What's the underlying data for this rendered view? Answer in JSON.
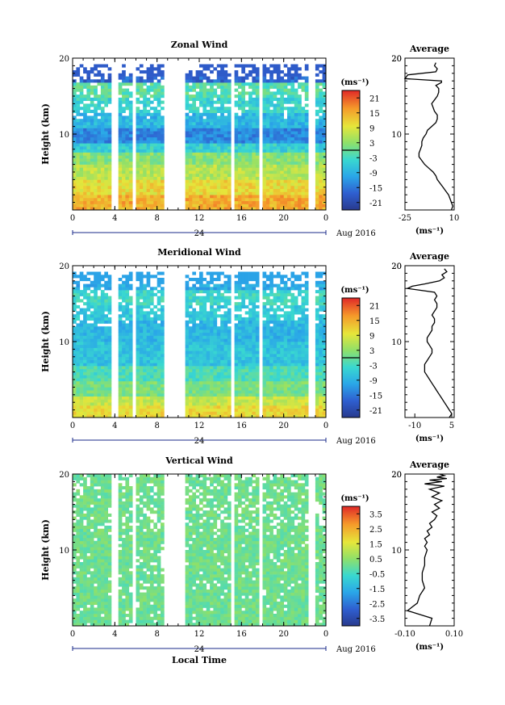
{
  "chart_data": [
    {
      "type": "heatmap",
      "title": "Zonal Wind",
      "ylabel": "Height (km)",
      "yticks": [
        "10",
        "20"
      ],
      "ylim": [
        0,
        20
      ],
      "xticks": [
        "0",
        "4",
        "8",
        "12",
        "16",
        "20",
        "0"
      ],
      "xlim": [
        0,
        24
      ],
      "date_center": "24",
      "date_label": "Aug 2016",
      "colorbar": {
        "unit": "(ms⁻¹)",
        "ticks": [
          "21",
          "15",
          "9",
          "3",
          "-3",
          "-9",
          "-15",
          "-21"
        ],
        "range": [
          -24,
          24
        ]
      },
      "profile": {
        "title": "Average",
        "xticks": [
          "-25",
          "10"
        ],
        "xlim": [
          -25,
          10
        ],
        "yticks": [
          "10",
          "20"
        ],
        "xlabel": "(ms⁻¹)",
        "x": [
          8,
          9,
          8,
          7,
          6,
          4,
          2,
          0,
          -2,
          -3,
          -5,
          -8,
          -11,
          -13,
          -15,
          -15,
          -14,
          -13,
          -13,
          -12,
          -10,
          -9,
          -6,
          -3,
          -2,
          -2,
          -4,
          -5,
          -6,
          -4,
          -2,
          -1,
          -1,
          -2,
          -3,
          1,
          1,
          -25,
          -23,
          -3,
          -2,
          -4,
          -3
        ],
        "y": [
          0,
          0.5,
          1,
          1.5,
          2,
          2.5,
          3,
          3.5,
          4,
          4.5,
          5,
          5.5,
          6,
          6.5,
          7,
          7.5,
          8,
          8.5,
          9,
          9.5,
          10,
          10.5,
          11,
          11.5,
          12,
          12.5,
          13,
          13.5,
          14,
          14.5,
          15,
          15.5,
          16,
          16.2,
          16.4,
          16.8,
          17.0,
          17.3,
          17.8,
          18.2,
          18.6,
          19.0,
          19.4
        ]
      }
    },
    {
      "type": "heatmap",
      "title": "Meridional Wind",
      "ylabel": "Height (km)",
      "yticks": [
        "10",
        "20"
      ],
      "ylim": [
        0,
        20
      ],
      "xticks": [
        "0",
        "4",
        "8",
        "12",
        "16",
        "20",
        "0"
      ],
      "xlim": [
        0,
        24
      ],
      "date_center": "24",
      "date_label": "Aug 2016",
      "colorbar": {
        "unit": "(ms⁻¹)",
        "ticks": [
          "21",
          "15",
          "9",
          "3",
          "-3",
          "-9",
          "-15",
          "-21"
        ],
        "range": [
          -24,
          24
        ]
      },
      "profile": {
        "title": "Average",
        "xticks": [
          "-10",
          "5"
        ],
        "xlim": [
          -14,
          6
        ],
        "yticks": [
          "10",
          "20"
        ],
        "xlabel": "(ms⁻¹)",
        "x": [
          4,
          5,
          4,
          3,
          2,
          1,
          0,
          -1,
          -2,
          -3,
          -4,
          -5,
          -6,
          -6,
          -6,
          -5,
          -4,
          -3,
          -3,
          -4,
          -5,
          -5,
          -4,
          -3,
          -3,
          -2,
          -2,
          -3,
          -2,
          -1,
          -1,
          -2,
          -1,
          -2,
          -13,
          -11,
          -6,
          0,
          2,
          1,
          3,
          2
        ],
        "y": [
          0,
          0.5,
          1,
          1.5,
          2,
          2.5,
          3,
          3.5,
          4,
          4.5,
          5,
          5.5,
          6,
          6.5,
          7,
          7.5,
          8,
          8.5,
          9,
          9.5,
          10,
          10.5,
          11,
          11.5,
          12,
          12.5,
          13,
          13.5,
          14,
          14.5,
          15,
          15.5,
          16,
          16.5,
          17.0,
          17.3,
          17.6,
          18.0,
          18.4,
          18.8,
          19.2,
          19.6
        ]
      }
    },
    {
      "type": "heatmap",
      "title": "Vertical Wind",
      "ylabel": "Height (km)",
      "yticks": [
        "10",
        "20"
      ],
      "ylim": [
        0,
        20
      ],
      "xticks": [
        "0",
        "4",
        "8",
        "12",
        "16",
        "20",
        "0"
      ],
      "xlim": [
        0,
        24
      ],
      "date_center": "24",
      "date_label": "Aug 2016",
      "xlabel": "Local Time",
      "colorbar": {
        "unit": "(ms⁻¹)",
        "ticks": [
          "3.5",
          "2.5",
          "1.5",
          "0.5",
          "-0.5",
          "-1.5",
          "-2.5",
          "-3.5"
        ],
        "range": [
          -4,
          4
        ]
      },
      "profile": {
        "title": "Average",
        "xticks": [
          "-0.10",
          "0.10"
        ],
        "xlim": [
          -0.1,
          0.1
        ],
        "yticks": [
          "10",
          "20"
        ],
        "xlabel": "(ms⁻¹)",
        "x": [
          0.0,
          0.01,
          -0.09,
          -0.07,
          -0.05,
          -0.04,
          -0.02,
          -0.03,
          -0.03,
          -0.02,
          -0.02,
          -0.01,
          -0.02,
          -0.01,
          -0.02,
          0.0,
          -0.01,
          0.01,
          0.0,
          0.02,
          0.03,
          0.01,
          0.04,
          0.02,
          0.05,
          0.01,
          0.04,
          0.0,
          0.06,
          -0.02,
          0.05,
          0.0,
          0.07,
          0.03,
          0.06,
          0.04
        ],
        "y": [
          0,
          1,
          2,
          2.5,
          3,
          4,
          5,
          6,
          7,
          8,
          9,
          10,
          10.5,
          11,
          11.5,
          12,
          12.5,
          13,
          13.5,
          14,
          14.5,
          15,
          15.5,
          16,
          16.5,
          17,
          17.5,
          18,
          18.4,
          18.7,
          19.0,
          19.2,
          19.4,
          19.6,
          19.8,
          20.0
        ]
      }
    }
  ]
}
